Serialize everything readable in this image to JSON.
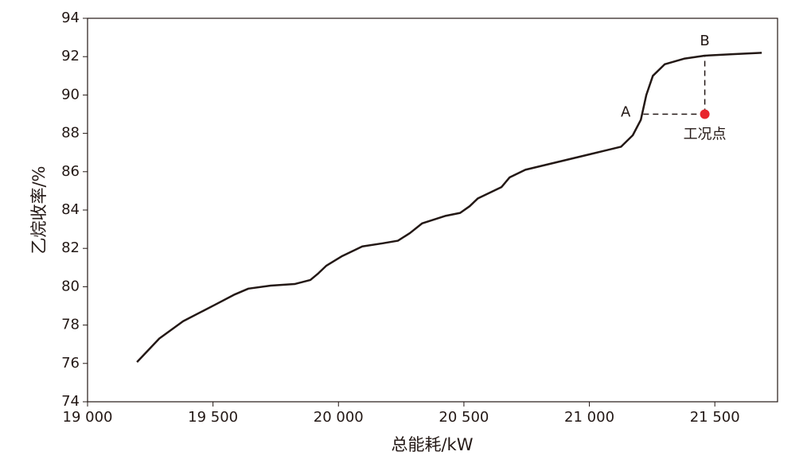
{
  "chart_data": {
    "type": "line",
    "x_label": "总能耗/kW",
    "y_label": "乙烷收率/%",
    "x": [
      19197,
      19286,
      19381,
      19508,
      19587,
      19641,
      19730,
      19825,
      19888,
      19920,
      19952,
      20015,
      20095,
      20174,
      20237,
      20285,
      20333,
      20428,
      20485,
      20523,
      20555,
      20650,
      20682,
      20745,
      20872,
      20999,
      21126,
      21173,
      21205,
      21227,
      21253,
      21300,
      21380,
      21459,
      21570,
      21687
    ],
    "values": [
      76.07,
      77.3,
      78.2,
      79.06,
      79.6,
      79.9,
      80.06,
      80.14,
      80.35,
      80.7,
      81.1,
      81.6,
      82.1,
      82.26,
      82.4,
      82.8,
      83.3,
      83.7,
      83.85,
      84.2,
      84.6,
      85.2,
      85.7,
      86.1,
      86.5,
      86.9,
      87.3,
      87.9,
      88.7,
      90.0,
      91.0,
      91.6,
      91.9,
      92.05,
      92.13,
      92.2
    ],
    "color": "#231815",
    "operating_point": {
      "label": "工况点",
      "x": 21460,
      "y": 89,
      "color": "#e8262d"
    },
    "point_A": {
      "label": "A",
      "x": 21215,
      "y": 89
    },
    "point_B": {
      "label": "B",
      "x": 21460,
      "y": 92.05
    },
    "xlim": [
      19000,
      21750
    ],
    "xticks": [
      {
        "value": 19000,
        "label": "19 000"
      },
      {
        "value": 19500,
        "label": "19 500"
      },
      {
        "value": 20000,
        "label": "20 000"
      },
      {
        "value": 20500,
        "label": "20 500"
      },
      {
        "value": 21000,
        "label": "21 000"
      },
      {
        "value": 21500,
        "label": "21 500"
      }
    ],
    "ylim": [
      74,
      94
    ],
    "yticks": [
      74,
      76,
      78,
      80,
      82,
      84,
      86,
      88,
      90,
      92,
      94
    ],
    "grid": false
  }
}
